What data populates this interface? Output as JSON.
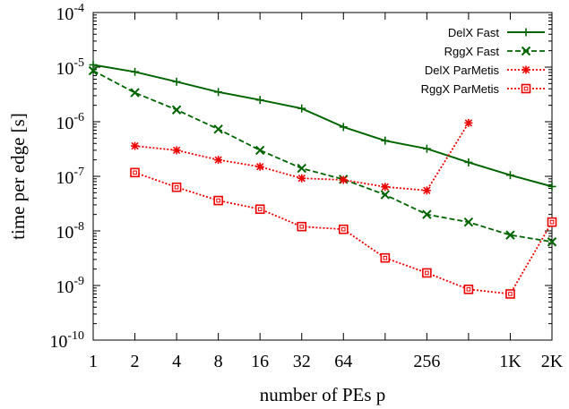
{
  "chart_data": {
    "type": "line",
    "title": "",
    "xlabel": "number of PEs p",
    "ylabel": "time per edge [s]",
    "x_scale": "log2",
    "y_scale": "log10",
    "xlim": [
      1,
      2048
    ],
    "ylim": [
      1e-10,
      0.0001
    ],
    "x_ticks": [
      {
        "value": 1,
        "label": "1"
      },
      {
        "value": 2,
        "label": "2"
      },
      {
        "value": 4,
        "label": "4"
      },
      {
        "value": 8,
        "label": "8"
      },
      {
        "value": 16,
        "label": "16"
      },
      {
        "value": 32,
        "label": "32"
      },
      {
        "value": 64,
        "label": "64"
      },
      {
        "value": 256,
        "label": "256"
      },
      {
        "value": 1024,
        "label": "1K"
      },
      {
        "value": 2048,
        "label": "2K"
      }
    ],
    "y_ticks": [
      {
        "value": 1e-10,
        "mantissa": "10",
        "exponent": "-10"
      },
      {
        "value": 1e-09,
        "mantissa": "10",
        "exponent": "-9"
      },
      {
        "value": 1e-08,
        "mantissa": "10",
        "exponent": "-8"
      },
      {
        "value": 1e-07,
        "mantissa": "10",
        "exponent": "-7"
      },
      {
        "value": 1e-06,
        "mantissa": "10",
        "exponent": "-6"
      },
      {
        "value": 1e-05,
        "mantissa": "10",
        "exponent": "-5"
      },
      {
        "value": 0.0001,
        "mantissa": "10",
        "exponent": "-4"
      }
    ],
    "legend_position": "top-right",
    "grid": false,
    "series": [
      {
        "name": "DelX Fast",
        "color": "#006400",
        "dash": "solid",
        "marker": "plus",
        "points": [
          [
            1,
            1.1e-05
          ],
          [
            2,
            8.2e-06
          ],
          [
            4,
            5.4e-06
          ],
          [
            8,
            3.5e-06
          ],
          [
            16,
            2.5e-06
          ],
          [
            32,
            1.75e-06
          ],
          [
            64,
            8e-07
          ],
          [
            128,
            4.5e-07
          ],
          [
            256,
            3.2e-07
          ],
          [
            512,
            1.8e-07
          ],
          [
            1024,
            1.05e-07
          ],
          [
            2048,
            6.5e-08
          ]
        ]
      },
      {
        "name": "RggX Fast",
        "color": "#006400",
        "dash": "dashed",
        "marker": "cross",
        "points": [
          [
            1,
            8.6e-06
          ],
          [
            2,
            3.4e-06
          ],
          [
            4,
            1.65e-06
          ],
          [
            8,
            7.3e-07
          ],
          [
            16,
            3e-07
          ],
          [
            32,
            1.4e-07
          ],
          [
            64,
            8.8e-08
          ],
          [
            128,
            4.6e-08
          ],
          [
            256,
            2e-08
          ],
          [
            512,
            1.45e-08
          ],
          [
            1024,
            8.4e-09
          ],
          [
            2048,
            6.3e-09
          ]
        ]
      },
      {
        "name": "DelX ParMetis",
        "color": "#ee0000",
        "dash": "dotted",
        "marker": "star",
        "points": [
          [
            2,
            3.6e-07
          ],
          [
            4,
            3e-07
          ],
          [
            8,
            2e-07
          ],
          [
            16,
            1.5e-07
          ],
          [
            32,
            9.2e-08
          ],
          [
            64,
            8.6e-08
          ],
          [
            128,
            6.4e-08
          ],
          [
            256,
            5.5e-08
          ],
          [
            512,
            9.5e-07
          ]
        ]
      },
      {
        "name": "RggX ParMetis",
        "color": "#ee0000",
        "dash": "dotted",
        "marker": "box",
        "points": [
          [
            2,
            1.17e-07
          ],
          [
            4,
            6.3e-08
          ],
          [
            8,
            3.6e-08
          ],
          [
            16,
            2.5e-08
          ],
          [
            32,
            1.2e-08
          ],
          [
            64,
            1.07e-08
          ],
          [
            128,
            3.2e-09
          ],
          [
            256,
            1.7e-09
          ],
          [
            512,
            8.5e-10
          ],
          [
            1024,
            7e-10
          ],
          [
            2048,
            1.45e-08
          ]
        ]
      }
    ]
  }
}
